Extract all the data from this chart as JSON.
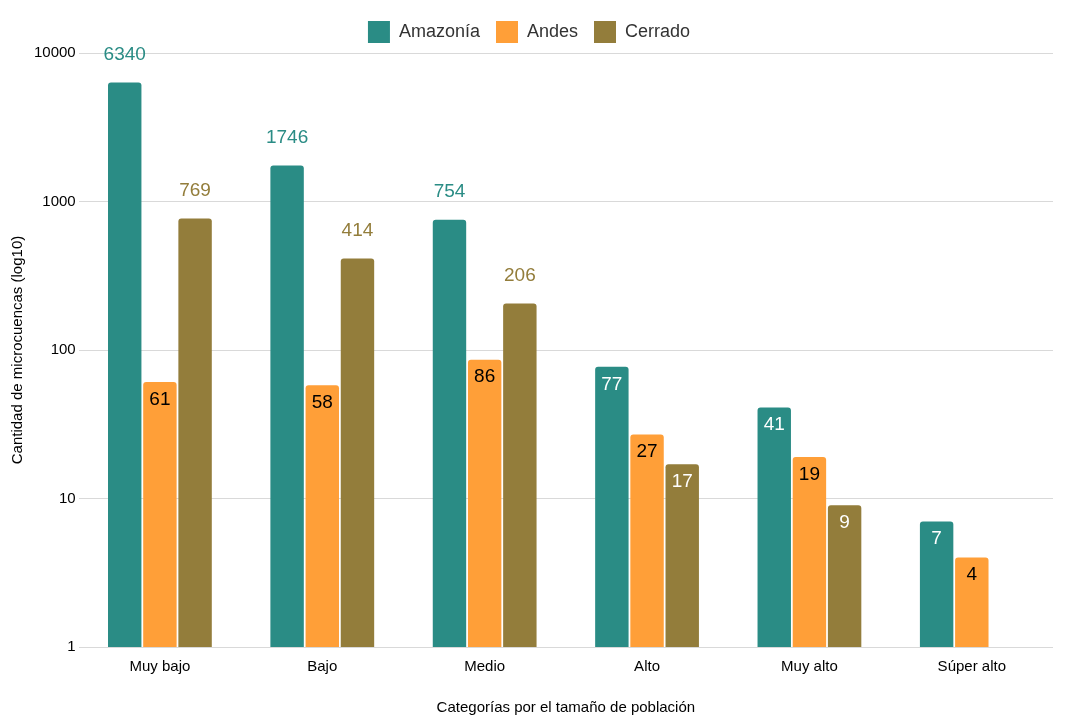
{
  "chart_data": {
    "type": "bar",
    "xlabel": "Categorías por el tamaño de población",
    "ylabel": "Cantidad de microcuencas (log10)",
    "categories": [
      "Muy bajo",
      "Bajo",
      "Medio",
      "Alto",
      "Muy alto",
      "Súper alto"
    ],
    "series": [
      {
        "name": "Amazonía",
        "color": "#2a8c85",
        "values": [
          6340,
          1746,
          754,
          77,
          41,
          7
        ]
      },
      {
        "name": "Andes",
        "color": "#ff9f38",
        "values": [
          61,
          58,
          86,
          27,
          19,
          4
        ]
      },
      {
        "name": "Cerrado",
        "color": "#937d3b",
        "values": [
          769,
          414,
          206,
          17,
          9,
          null
        ]
      }
    ],
    "log": true,
    "ylim": [
      1,
      10000
    ],
    "yticks": [
      1,
      10,
      100,
      1000,
      10000
    ],
    "grid": "y",
    "legend": "top",
    "data_labels": true
  }
}
